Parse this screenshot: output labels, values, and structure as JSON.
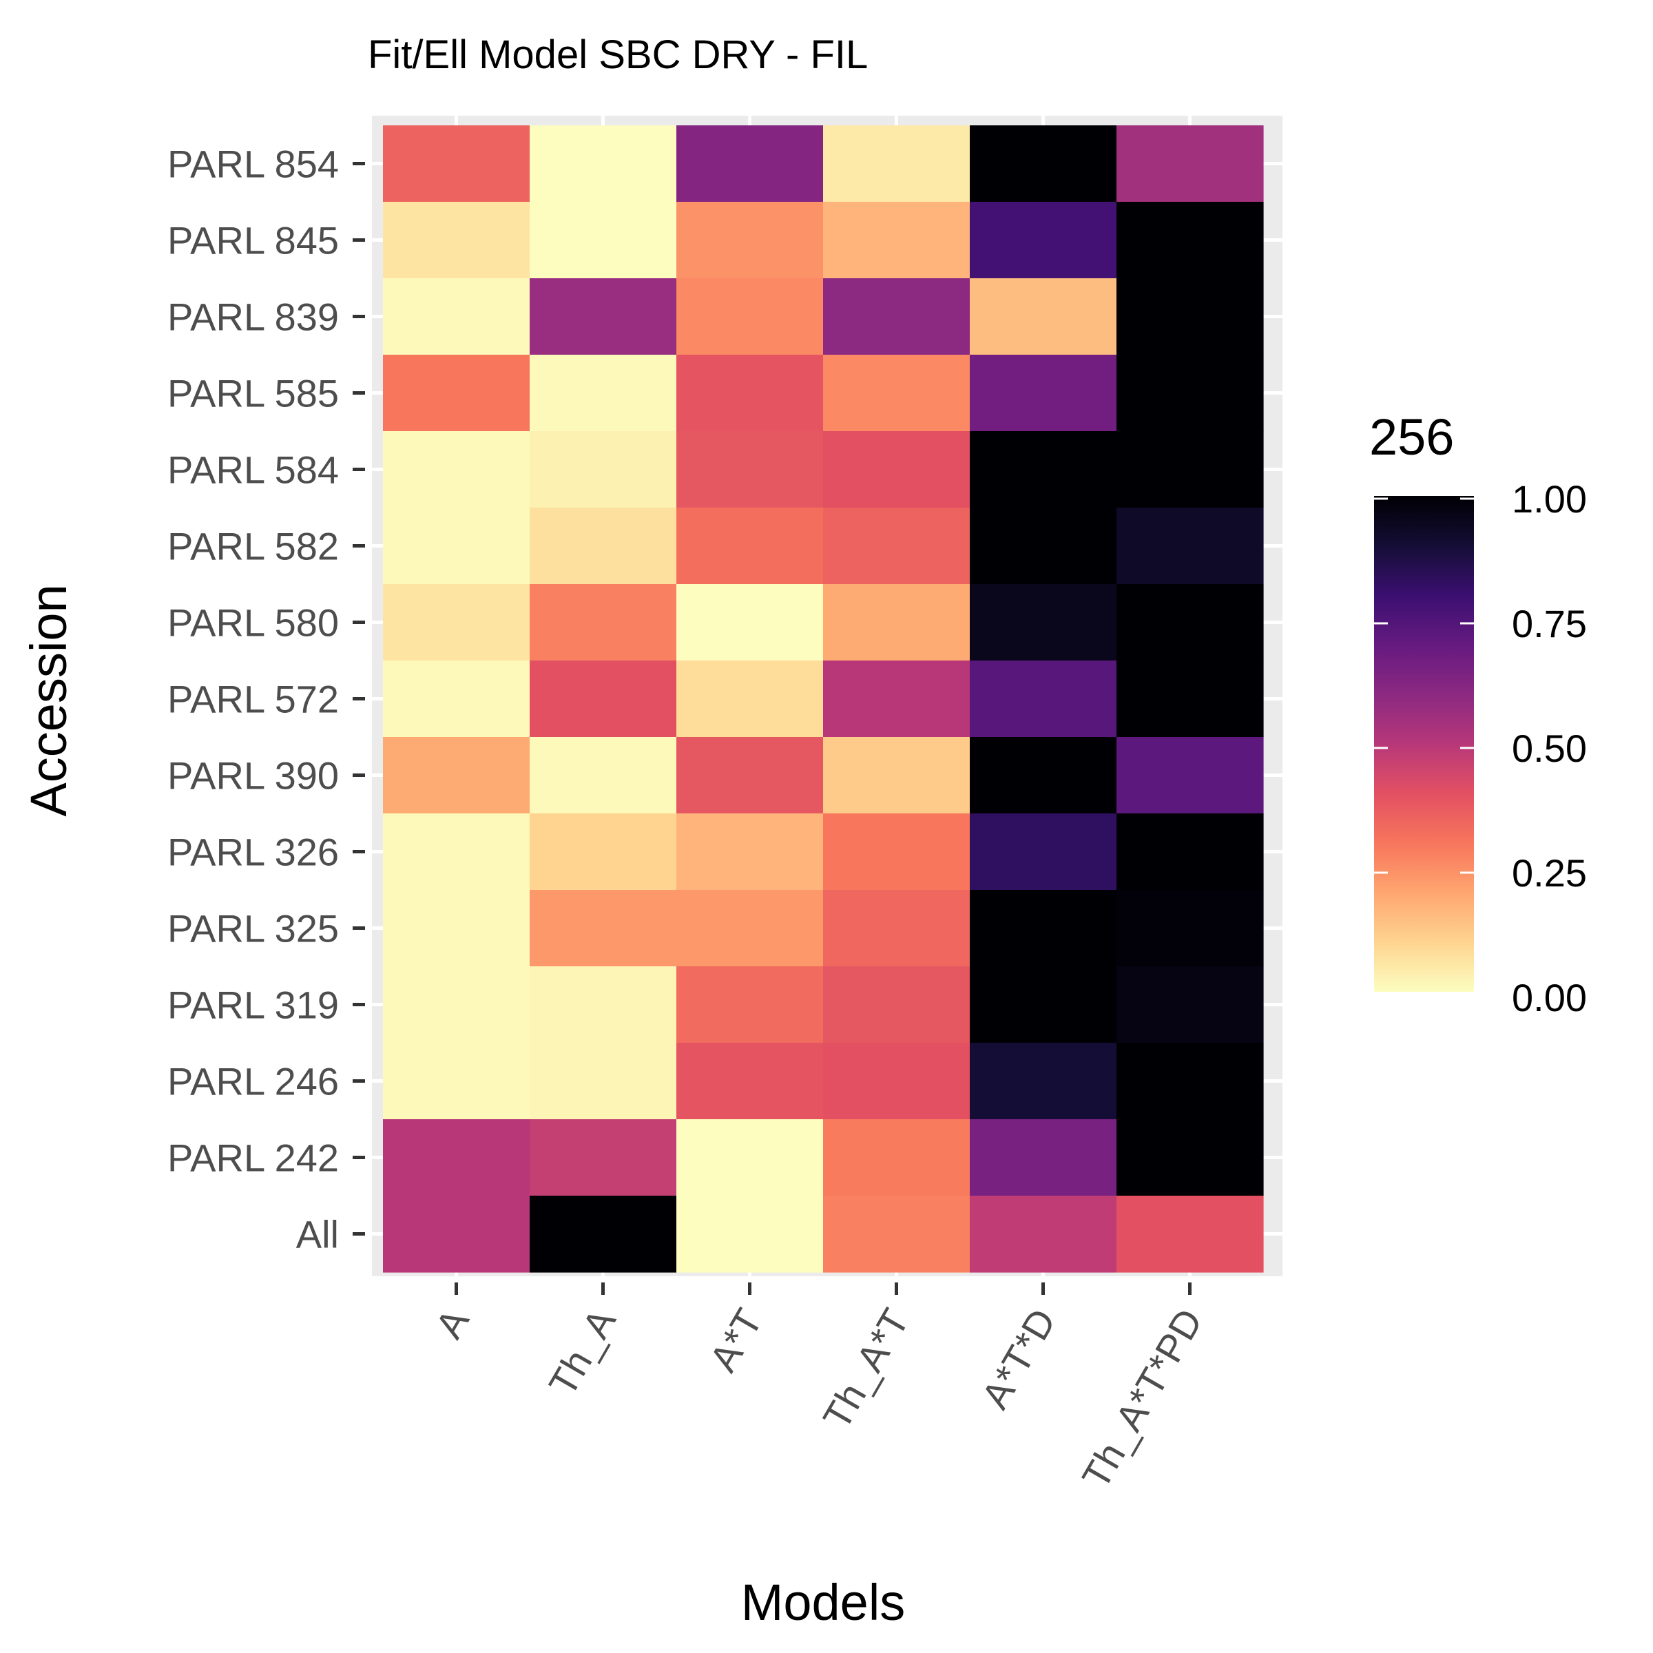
{
  "chart_data": {
    "type": "heatmap",
    "title": "Fit/Ell Model SBC DRY - FIL",
    "xlabel": "Models",
    "ylabel": "Accession",
    "x_categories": [
      "A",
      "Th_A",
      "A*T",
      "Th_A*T",
      "A*T*D",
      "Th_A*T*PD"
    ],
    "y_categories": [
      "PARL 854",
      "PARL 845",
      "PARL 839",
      "PARL 585",
      "PARL 584",
      "PARL 582",
      "PARL 580",
      "PARL 572",
      "PARL 390",
      "PARL 326",
      "PARL 325",
      "PARL 319",
      "PARL 246",
      "PARL 242",
      "All"
    ],
    "values": [
      [
        0.35,
        0.0,
        0.62,
        0.05,
        1.0,
        0.55
      ],
      [
        0.06,
        0.0,
        0.24,
        0.17,
        0.78,
        1.0
      ],
      [
        0.01,
        0.57,
        0.26,
        0.6,
        0.15,
        1.0
      ],
      [
        0.3,
        0.01,
        0.39,
        0.26,
        0.67,
        1.0
      ],
      [
        0.01,
        0.03,
        0.38,
        0.4,
        1.0,
        1.0
      ],
      [
        0.01,
        0.07,
        0.32,
        0.35,
        1.0,
        0.93
      ],
      [
        0.06,
        0.28,
        0.0,
        0.19,
        0.95,
        1.0
      ],
      [
        0.01,
        0.4,
        0.08,
        0.5,
        0.73,
        1.0
      ],
      [
        0.19,
        0.01,
        0.38,
        0.12,
        1.0,
        0.72
      ],
      [
        0.01,
        0.1,
        0.17,
        0.3,
        0.83,
        1.0
      ],
      [
        0.01,
        0.23,
        0.23,
        0.34,
        1.0,
        0.99
      ],
      [
        0.01,
        0.02,
        0.33,
        0.38,
        1.0,
        0.97
      ],
      [
        0.01,
        0.02,
        0.39,
        0.4,
        0.9,
        1.0
      ],
      [
        0.5,
        0.47,
        0.0,
        0.29,
        0.65,
        1.0
      ],
      [
        0.5,
        1.0,
        0.0,
        0.28,
        0.48,
        0.4
      ]
    ],
    "colorscale": "magma (reversed)",
    "color_min": "#fcfdbf",
    "color_max": "#000004",
    "legend": {
      "title": "256",
      "tick_labels": [
        "1.00",
        "0.75",
        "0.50",
        "0.25",
        "0.00"
      ],
      "tick_values": [
        1.0,
        0.75,
        0.5,
        0.25,
        0.0
      ],
      "range": [
        0,
        1
      ],
      "placement": "right"
    },
    "grid": true,
    "panel_background": "#ebebeb",
    "grid_color": "#ffffff"
  }
}
